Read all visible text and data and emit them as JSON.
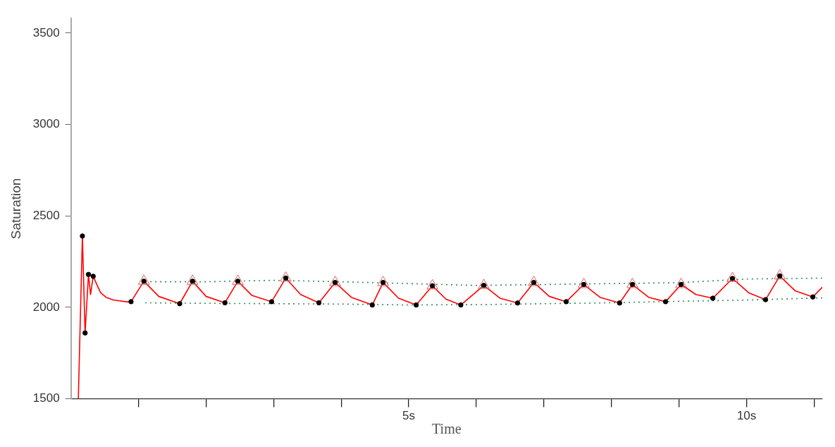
{
  "chart_data": {
    "type": "line",
    "xlabel": "Time",
    "ylabel": "Saturation",
    "xlim": [
      0,
      11.12
    ],
    "ylim": [
      1500,
      3580
    ],
    "xticks": [
      {
        "value": 1,
        "label": null
      },
      {
        "value": 2,
        "label": null
      },
      {
        "value": 3,
        "label": null
      },
      {
        "value": 4,
        "label": null
      },
      {
        "value": 5,
        "label": "5s"
      },
      {
        "value": 6,
        "label": null
      },
      {
        "value": 7,
        "label": null
      },
      {
        "value": 8,
        "label": null
      },
      {
        "value": 9,
        "label": null
      },
      {
        "value": 10,
        "label": "10s"
      },
      {
        "value": 11,
        "label": null
      }
    ],
    "yticks": [
      1500,
      2000,
      2500,
      3000,
      3500
    ],
    "grid": false,
    "legend": false,
    "series": [
      {
        "color": "#2e8b57",
        "line_style": "dotted",
        "marker": "none",
        "x": [
          1.1,
          2,
          3,
          4,
          5,
          6,
          7,
          8,
          9,
          10,
          11.12
        ],
        "values": [
          2140,
          2140,
          2148,
          2140,
          2130,
          2120,
          2125,
          2130,
          2135,
          2155,
          2160
        ]
      },
      {
        "color": "#2e8b57",
        "line_style": "dotted",
        "marker": "none",
        "x": [
          1.1,
          2,
          3,
          4,
          5,
          6,
          7,
          8,
          9,
          10,
          11.12
        ],
        "values": [
          2025,
          2022,
          2020,
          2018,
          2013,
          2015,
          2020,
          2025,
          2033,
          2040,
          2052
        ]
      },
      {
        "color": "#ff0000",
        "line_style": "solid",
        "marker": "none",
        "x": [
          0.11,
          0.17,
          0.21,
          0.26,
          0.29,
          0.33,
          0.39,
          0.44,
          0.52,
          0.63,
          0.83,
          0.89,
          1.08,
          1.3,
          1.61,
          1.8,
          2.0,
          2.28,
          2.47,
          2.68,
          2.97,
          3.18,
          3.4,
          3.67,
          3.91,
          4.15,
          4.46,
          4.62,
          4.85,
          5.11,
          5.35,
          5.55,
          5.77,
          6.11,
          6.35,
          6.61,
          6.85,
          7.08,
          7.33,
          7.59,
          7.83,
          8.12,
          8.31,
          8.55,
          8.8,
          9.03,
          9.25,
          9.5,
          9.79,
          10.03,
          10.28,
          10.49,
          10.72,
          10.98,
          11.12
        ],
        "values": [
          1500,
          2390,
          1860,
          2180,
          2070,
          2170,
          2120,
          2080,
          2055,
          2040,
          2030,
          2031,
          2143,
          2060,
          2020,
          2143,
          2060,
          2025,
          2143,
          2065,
          2031,
          2160,
          2070,
          2025,
          2136,
          2055,
          2013,
          2136,
          2050,
          2013,
          2118,
          2045,
          2013,
          2120,
          2050,
          2024,
          2136,
          2060,
          2031,
          2125,
          2055,
          2024,
          2125,
          2055,
          2031,
          2125,
          2070,
          2050,
          2158,
          2080,
          2042,
          2172,
          2090,
          2057,
          2110
        ]
      },
      {
        "type": "scatter",
        "color": "#e06060",
        "marker": "triangle",
        "x": [
          1.08,
          1.8,
          2.47,
          3.18,
          3.91,
          4.62,
          5.35,
          6.11,
          6.85,
          7.59,
          8.31,
          9.03,
          9.79,
          10.49
        ],
        "values": [
          2143,
          2143,
          2143,
          2160,
          2136,
          2136,
          2118,
          2120,
          2136,
          2125,
          2125,
          2125,
          2158,
          2172
        ]
      },
      {
        "type": "scatter",
        "color": "#000000",
        "marker": "circle",
        "x": [
          0.17,
          0.21,
          0.26,
          0.33,
          0.89,
          1.08,
          1.61,
          1.8,
          2.28,
          2.47,
          2.97,
          3.18,
          3.67,
          3.91,
          4.46,
          4.62,
          5.11,
          5.35,
          5.77,
          6.11,
          6.61,
          6.85,
          7.33,
          7.59,
          8.12,
          8.31,
          8.8,
          9.03,
          9.5,
          9.79,
          10.28,
          10.49,
          10.98
        ],
        "values": [
          2390,
          1860,
          2180,
          2170,
          2031,
          2143,
          2020,
          2143,
          2025,
          2143,
          2031,
          2160,
          2025,
          2136,
          2013,
          2136,
          2013,
          2118,
          2013,
          2120,
          2024,
          2136,
          2031,
          2125,
          2024,
          2125,
          2031,
          2125,
          2050,
          2158,
          2042,
          2172,
          2057
        ]
      }
    ]
  }
}
